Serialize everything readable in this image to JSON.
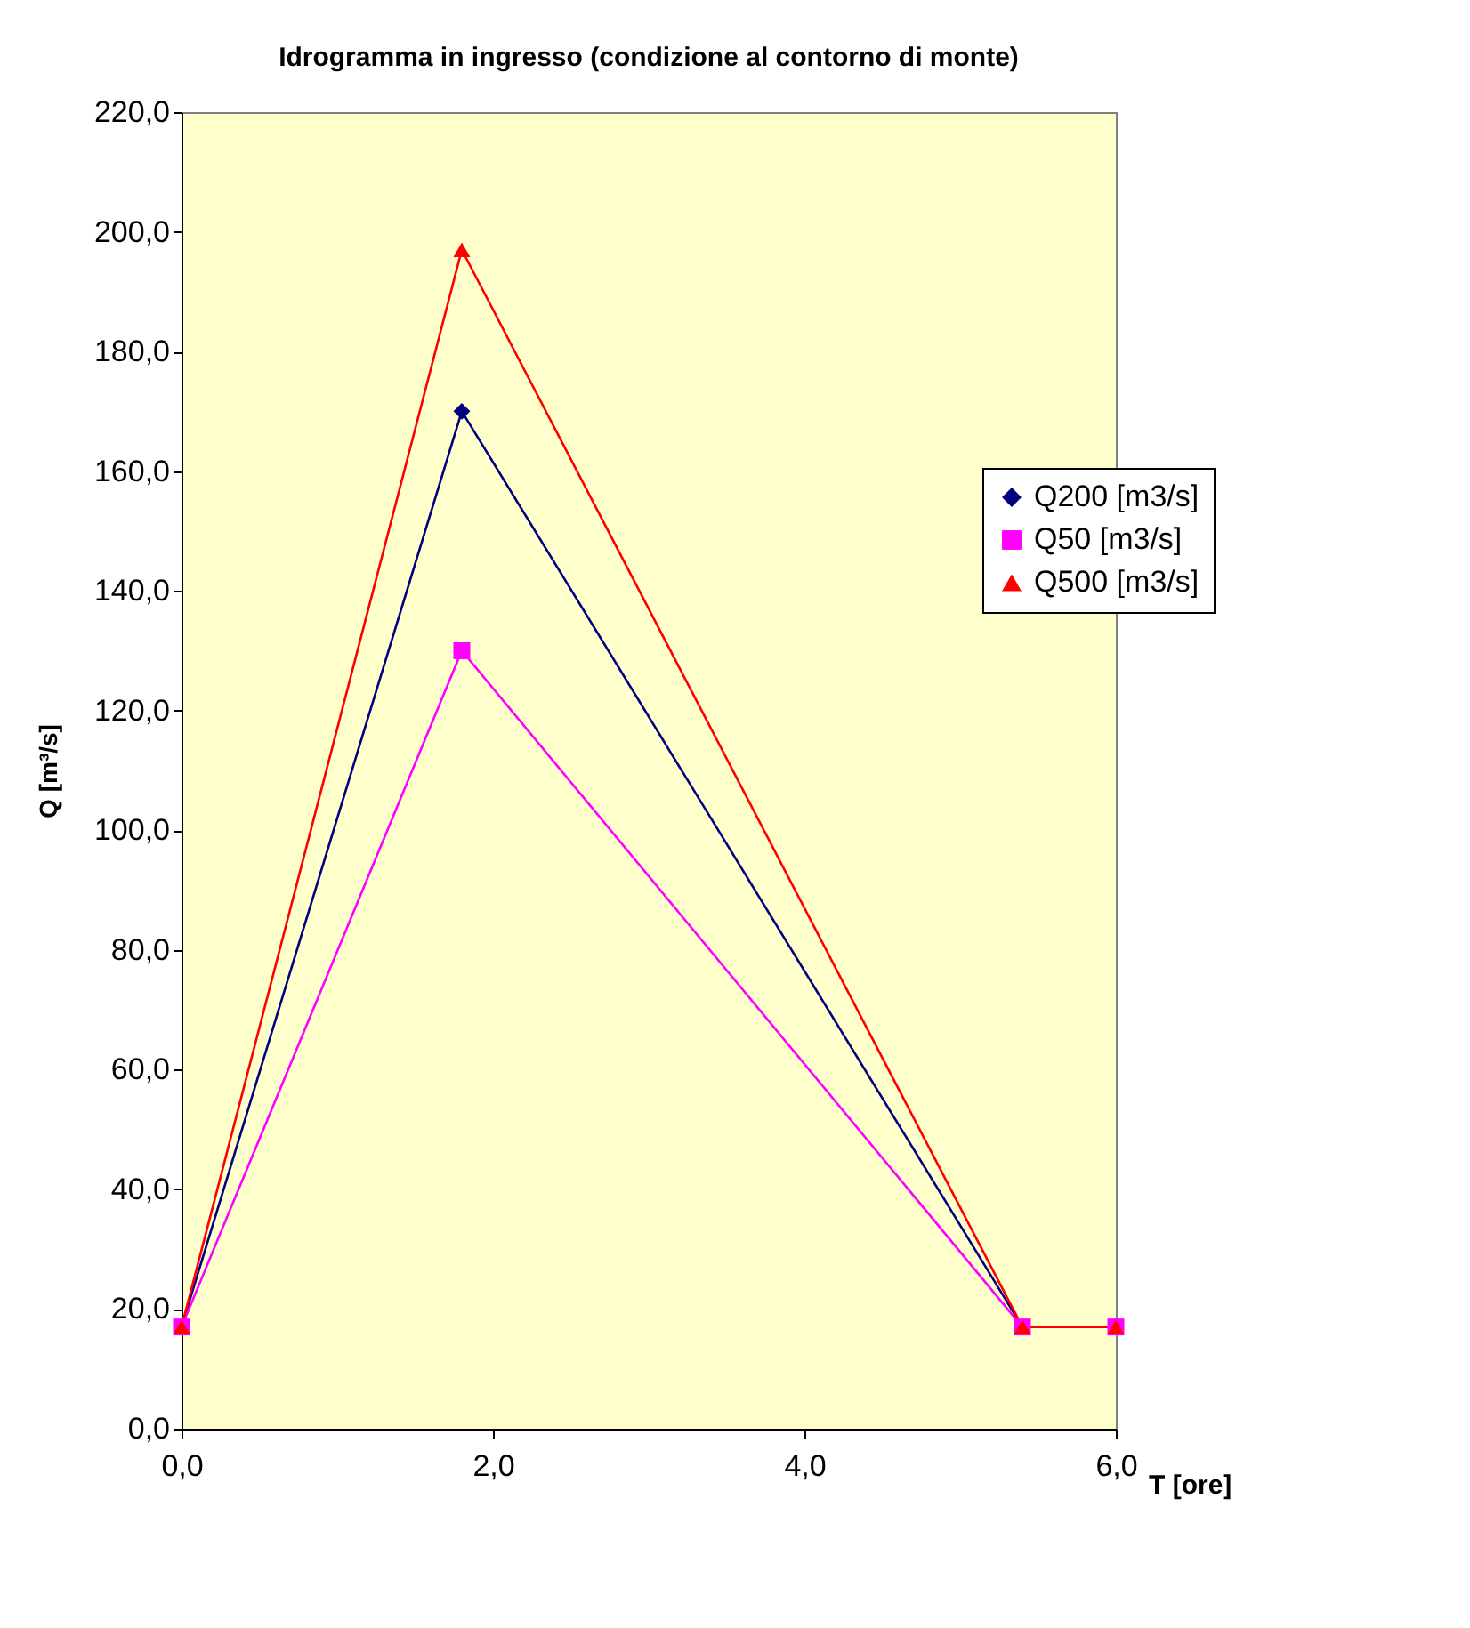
{
  "chart_data": {
    "type": "line",
    "title": "Idrogramma in ingresso (condizione al contorno di monte)",
    "xlabel": "T [ore]",
    "ylabel": "Q [m³/s]",
    "xlim": [
      0,
      6
    ],
    "xticks": [
      {
        "value": 0,
        "label": "0,0"
      },
      {
        "value": 2,
        "label": "2,0"
      },
      {
        "value": 4,
        "label": "4,0"
      },
      {
        "value": 6,
        "label": "6,0"
      }
    ],
    "ylim": [
      0,
      220
    ],
    "yticks": [
      {
        "value": 0,
        "label": "0,0"
      },
      {
        "value": 20,
        "label": "20,0"
      },
      {
        "value": 40,
        "label": "40,0"
      },
      {
        "value": 60,
        "label": "60,0"
      },
      {
        "value": 80,
        "label": "80,0"
      },
      {
        "value": 100,
        "label": "100,0"
      },
      {
        "value": 120,
        "label": "120,0"
      },
      {
        "value": 140,
        "label": "140,0"
      },
      {
        "value": 160,
        "label": "160,0"
      },
      {
        "value": 180,
        "label": "180,0"
      },
      {
        "value": 200,
        "label": "200,0"
      },
      {
        "value": 220,
        "label": "220,0"
      }
    ],
    "x": [
      0,
      1.8,
      5.4,
      6.0
    ],
    "series": [
      {
        "name": "Q200 [m3/s]",
        "color": "#000080",
        "marker": "diamond",
        "values": [
          17,
          170,
          17,
          17
        ]
      },
      {
        "name": "Q50 [m3/s]",
        "color": "#ff00ff",
        "marker": "square",
        "values": [
          17,
          130,
          17,
          17
        ]
      },
      {
        "name": "Q500 [m3/s]",
        "color": "#ff0000",
        "marker": "triangle",
        "values": [
          17,
          197,
          17,
          17
        ]
      }
    ],
    "grid": false,
    "legend": "right",
    "line_style": "solid"
  }
}
